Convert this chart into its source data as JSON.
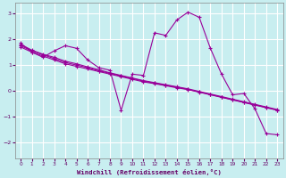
{
  "xlabel": "Windchill (Refroidissement éolien,°C)",
  "bg_color": "#c8eef0",
  "grid_color": "#ffffff",
  "line_color": "#990099",
  "xlim": [
    -0.5,
    23.5
  ],
  "ylim": [
    -2.6,
    3.4
  ],
  "xticks": [
    0,
    1,
    2,
    3,
    4,
    5,
    6,
    7,
    8,
    9,
    10,
    11,
    12,
    13,
    14,
    15,
    16,
    17,
    18,
    19,
    20,
    21,
    22,
    23
  ],
  "yticks": [
    -2,
    -1,
    0,
    1,
    2,
    3
  ],
  "series1_x": [
    0,
    1,
    2,
    3,
    4,
    5,
    6,
    7,
    8,
    9,
    10,
    11,
    12,
    13,
    14,
    15,
    16,
    17,
    18,
    19,
    20,
    21,
    22,
    23
  ],
  "series1_y": [
    1.85,
    1.5,
    1.3,
    1.55,
    1.75,
    1.65,
    1.2,
    0.9,
    0.8,
    -0.75,
    0.65,
    0.6,
    2.25,
    2.15,
    2.75,
    3.05,
    2.85,
    1.65,
    0.65,
    -0.15,
    -0.1,
    -0.7,
    -1.65,
    -1.7
  ],
  "series2_x": [
    0,
    1,
    2,
    3,
    4,
    5,
    6,
    7,
    8,
    9,
    10,
    11,
    12,
    13,
    14,
    15,
    16,
    17,
    18,
    19,
    20,
    21,
    22,
    23
  ],
  "series2_y": [
    1.7,
    1.5,
    1.35,
    1.2,
    1.05,
    0.95,
    0.85,
    0.75,
    0.65,
    0.55,
    0.45,
    0.35,
    0.28,
    0.2,
    0.12,
    0.05,
    -0.05,
    -0.15,
    -0.25,
    -0.35,
    -0.45,
    -0.55,
    -0.65,
    -0.75
  ],
  "series3_x": [
    0,
    1,
    2,
    3,
    4,
    5,
    6,
    7,
    8,
    9,
    10,
    11,
    12,
    13,
    14,
    15,
    16,
    17,
    18,
    19,
    20,
    21,
    22,
    23
  ],
  "series3_y": [
    1.75,
    1.55,
    1.4,
    1.25,
    1.1,
    1.0,
    0.9,
    0.78,
    0.68,
    0.58,
    0.48,
    0.38,
    0.3,
    0.22,
    0.14,
    0.06,
    -0.04,
    -0.14,
    -0.24,
    -0.34,
    -0.44,
    -0.54,
    -0.64,
    -0.74
  ],
  "series4_x": [
    0,
    1,
    2,
    3,
    4,
    5,
    6,
    7,
    8,
    9,
    10,
    11,
    12,
    13,
    14,
    15,
    16,
    17,
    18,
    19,
    20,
    21,
    22,
    23
  ],
  "series4_y": [
    1.8,
    1.58,
    1.42,
    1.3,
    1.15,
    1.05,
    0.93,
    0.82,
    0.7,
    0.6,
    0.5,
    0.4,
    0.32,
    0.24,
    0.16,
    0.08,
    -0.02,
    -0.12,
    -0.22,
    -0.32,
    -0.42,
    -0.52,
    -0.62,
    -0.72
  ]
}
